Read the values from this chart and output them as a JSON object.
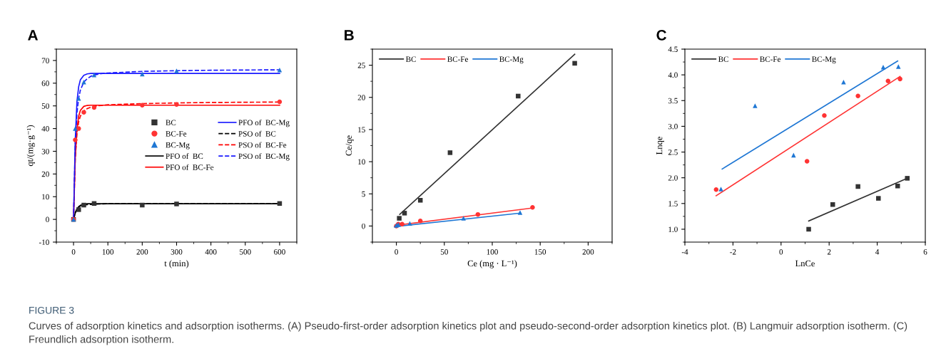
{
  "chart_data": [
    {
      "type": "scatter",
      "title": "A",
      "xlabel": "t (min)",
      "ylabel": "qt/(mg·g⁻¹)",
      "xlim": [
        -50,
        650
      ],
      "ylim": [
        -10,
        75
      ],
      "xticks": [
        0,
        100,
        200,
        300,
        400,
        500,
        600
      ],
      "yticks": [
        -10,
        0,
        10,
        20,
        30,
        40,
        50,
        60,
        70
      ],
      "grid": false,
      "legend": "center right",
      "annotations": [
        "FIGURE 3",
        "Curves of adsorption kinetics and adsorption isotherms. (A) Pseudo-first-order adsorption kinetics plot and pseudo-second-order adsorption kinetics plot. (B) Langmuir adsorption isotherm. (C) Freundlich adsorption isotherm."
      ],
      "series": [
        {
          "name": "BC",
          "marker": "square",
          "color": "#333333",
          "x": [
            0,
            15,
            30,
            60,
            200,
            300,
            600
          ],
          "values": [
            0,
            4.3,
            6.3,
            7,
            6.3,
            6.8,
            7
          ]
        },
        {
          "name": "BC-Fe",
          "marker": "circle",
          "color": "#ff3333",
          "x": [
            0,
            5,
            15,
            30,
            60,
            200,
            300,
            600
          ],
          "values": [
            0,
            35,
            40,
            47.2,
            49.3,
            50.3,
            50.6,
            51.8
          ]
        },
        {
          "name": "BC-Mg",
          "marker": "triangle",
          "color": "#1f77d4",
          "x": [
            0,
            5,
            15,
            30,
            60,
            200,
            300,
            600
          ],
          "values": [
            0,
            40,
            53.3,
            60.5,
            63.6,
            64,
            65.4,
            65.8
          ]
        },
        {
          "name": "PFO of  BC",
          "type": "line",
          "line_style": "solid",
          "color": "#000000",
          "x": [
            0,
            5,
            10,
            15,
            20,
            30,
            40,
            50,
            60,
            80,
            100,
            200,
            300,
            400,
            500,
            600
          ],
          "values": [
            0,
            2.8,
            4.6,
            5.6,
            6.2,
            6.7,
            6.9,
            6.9,
            6.9,
            6.9,
            6.9,
            6.9,
            6.9,
            6.9,
            6.9,
            6.9
          ]
        },
        {
          "name": "PFO of  BC-Fe",
          "type": "line",
          "line_style": "solid",
          "color": "#ff0000",
          "x": [
            0,
            5,
            10,
            15,
            20,
            30,
            40,
            50,
            60,
            80,
            100,
            200,
            300,
            400,
            500,
            600
          ],
          "values": [
            0,
            27,
            40,
            45.5,
            48,
            49.8,
            50.2,
            50.3,
            50.3,
            50.3,
            50.3,
            50.3,
            50.3,
            50.3,
            50.3,
            50.3
          ]
        },
        {
          "name": "PFO of  BC-Mg",
          "type": "line",
          "line_style": "solid",
          "color": "#1a1aff",
          "x": [
            0,
            5,
            10,
            15,
            20,
            30,
            40,
            50,
            60,
            80,
            100,
            200,
            300,
            400,
            500,
            600
          ],
          "values": [
            0,
            35,
            52,
            58.5,
            61.5,
            63.5,
            64.1,
            64.3,
            64.3,
            64.3,
            64.3,
            64.3,
            64.3,
            64.3,
            64.3,
            64.3
          ]
        },
        {
          "name": "PSO of  BC",
          "type": "line",
          "line_style": "dashed",
          "color": "#000000",
          "x": [
            0,
            5,
            10,
            15,
            20,
            30,
            40,
            50,
            60,
            80,
            100,
            200,
            300,
            400,
            500,
            600
          ],
          "values": [
            0,
            3,
            4.6,
            5.4,
            5.9,
            6.3,
            6.5,
            6.6,
            6.7,
            6.8,
            6.9,
            7,
            7,
            7,
            7,
            7
          ]
        },
        {
          "name": "PSO of  BC-Fe",
          "type": "line",
          "line_style": "dashed",
          "color": "#ff0000",
          "x": [
            0,
            5,
            10,
            15,
            20,
            30,
            40,
            50,
            60,
            80,
            100,
            200,
            300,
            400,
            500,
            600
          ],
          "values": [
            0,
            27,
            38,
            43,
            45.5,
            47.8,
            48.8,
            49.4,
            49.8,
            50.2,
            50.5,
            51,
            51.3,
            51.5,
            51.6,
            51.7
          ]
        },
        {
          "name": "PSO of  BC-Mg",
          "type": "line",
          "line_style": "dashed",
          "color": "#1a1aff",
          "x": [
            0,
            5,
            10,
            15,
            20,
            30,
            40,
            50,
            60,
            80,
            100,
            200,
            300,
            400,
            500,
            600
          ],
          "values": [
            0,
            33,
            47,
            53.5,
            57,
            60.5,
            62,
            63,
            63.6,
            64.2,
            64.5,
            65.2,
            65.5,
            65.7,
            65.8,
            65.9
          ]
        }
      ]
    },
    {
      "type": "scatter",
      "title": "B",
      "xlabel": "Ce (mg · L⁻¹)",
      "ylabel": "Ce/qe",
      "xlim": [
        -25,
        225
      ],
      "ylim": [
        -2.5,
        27.5
      ],
      "xticks": [
        0,
        50,
        100,
        150,
        200
      ],
      "yticks": [
        0,
        5,
        10,
        15,
        20,
        25
      ],
      "grid": false,
      "legend": "top left",
      "series": [
        {
          "marker": "square",
          "color": "#333333",
          "x": [
            3,
            8.5,
            25,
            56,
            127,
            186
          ],
          "values": [
            1.2,
            2,
            4,
            11.4,
            20.2,
            25.3
          ]
        },
        {
          "marker": "circle",
          "color": "#ff3333",
          "x": [
            0,
            2,
            6,
            25,
            85,
            142
          ],
          "values": [
            0,
            0.3,
            0.3,
            0.8,
            1.8,
            2.9
          ]
        },
        {
          "marker": "triangle",
          "color": "#1f77d4",
          "x": [
            0,
            2,
            14,
            70,
            129
          ],
          "values": [
            0.1,
            0.2,
            0.4,
            1.2,
            2.1
          ]
        },
        {
          "name": "BC",
          "type": "line",
          "line_style": "solid",
          "color": "#333333",
          "x": [
            3.5,
            186
          ],
          "values": [
            1.8,
            26.7
          ]
        },
        {
          "name": "BC-Fe",
          "type": "line",
          "line_style": "solid",
          "color": "#ff3333",
          "x": [
            -1,
            142
          ],
          "values": [
            0.1,
            2.8
          ]
        },
        {
          "name": "BC-Mg",
          "type": "line",
          "line_style": "solid",
          "color": "#1f77d4",
          "x": [
            -2,
            129
          ],
          "values": [
            -0.1,
            2
          ]
        }
      ]
    },
    {
      "type": "scatter",
      "title": "C",
      "xlabel": "LnCe",
      "ylabel": "Lnqe",
      "xlim": [
        -4,
        6
      ],
      "ylim": [
        0.75,
        4.5
      ],
      "xticks": [
        -4,
        -2,
        0,
        2,
        4,
        6
      ],
      "yticks": [
        {
          "value": 1,
          "label": "1.0"
        },
        1.5,
        {
          "value": 2,
          "label": "2.0"
        },
        2.5,
        {
          "value": 3,
          "label": "3.0"
        },
        3.5,
        {
          "value": 4,
          "label": "4.0"
        },
        4.5
      ],
      "grid": false,
      "legend": "top left",
      "series": [
        {
          "marker": "square",
          "color": "#333333",
          "x": [
            1.15,
            2.15,
            3.2,
            4.05,
            4.85,
            5.25
          ],
          "values": [
            1,
            1.48,
            1.83,
            1.6,
            1.84,
            1.99
          ]
        },
        {
          "marker": "circle",
          "color": "#ff3333",
          "x": [
            -2.7,
            1.08,
            1.8,
            3.2,
            4.45,
            4.95
          ],
          "values": [
            1.77,
            2.32,
            3.21,
            3.59,
            3.88,
            3.92
          ]
        },
        {
          "marker": "triangle",
          "color": "#1f77d4",
          "x": [
            -2.5,
            -1.08,
            0.52,
            2.6,
            4.25,
            4.88
          ],
          "values": [
            1.78,
            3.4,
            2.44,
            3.86,
            4.15,
            4.16
          ]
        },
        {
          "name": "BC",
          "type": "line",
          "line_style": "solid",
          "color": "#333333",
          "x": [
            1.15,
            5.2
          ],
          "values": [
            1.16,
            1.98
          ]
        },
        {
          "name": "BC-Fe",
          "type": "line",
          "line_style": "solid",
          "color": "#ff3333",
          "x": [
            -2.7,
            4.95
          ],
          "values": [
            1.65,
            3.97
          ]
        },
        {
          "name": "BC-Mg",
          "type": "line",
          "line_style": "solid",
          "color": "#1f77d4",
          "x": [
            -2.45,
            4.85
          ],
          "values": [
            2.17,
            4.27
          ]
        }
      ]
    }
  ]
}
